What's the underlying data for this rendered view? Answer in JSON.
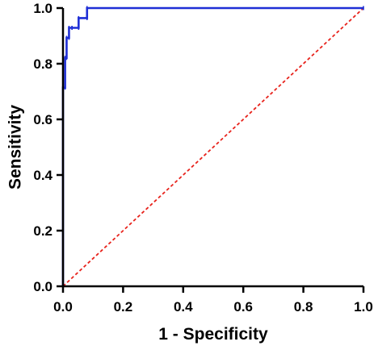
{
  "chart_data": {
    "type": "line",
    "xlabel": "1 - Specificity",
    "ylabel": "Sensitivity",
    "xlim": [
      0,
      1
    ],
    "ylim": [
      0,
      1
    ],
    "xticks": [
      "0.0",
      "0.2",
      "0.4",
      "0.6",
      "0.8",
      "1.0"
    ],
    "yticks": [
      "0.0",
      "0.2",
      "0.4",
      "0.6",
      "0.8",
      "1.0"
    ],
    "grid": false,
    "series": [
      {
        "kind": "roc",
        "color": "#1f2fd6",
        "x": [
          0,
          0,
          0.007,
          0.007,
          0.012,
          0.012,
          0.02,
          0.02,
          0.03,
          0.03,
          0.052,
          0.052,
          0.08,
          0.08,
          1.0
        ],
        "y": [
          0,
          0.714,
          0.714,
          0.821,
          0.821,
          0.893,
          0.893,
          0.929,
          0.929,
          0.929,
          0.929,
          0.964,
          0.964,
          1.0,
          1.0
        ]
      },
      {
        "kind": "reference",
        "color": "#e8231c",
        "dashed": true,
        "x": [
          0,
          1
        ],
        "y": [
          0,
          1
        ]
      }
    ]
  }
}
